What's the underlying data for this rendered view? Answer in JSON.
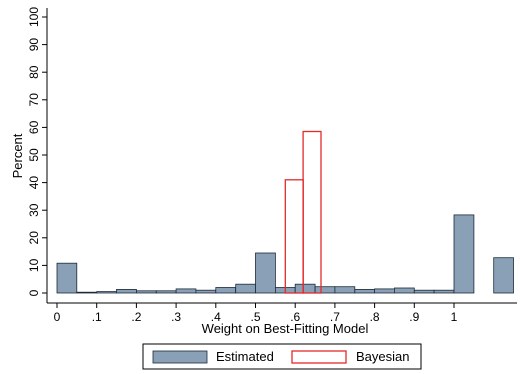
{
  "chart_data": {
    "type": "bar",
    "xlabel": "Weight on Best-Fitting Model",
    "ylabel": "Percent",
    "xlim": [
      0,
      1.15
    ],
    "ylim": [
      0,
      100
    ],
    "xticks": [
      0,
      0.1,
      0.2,
      0.3,
      0.4,
      0.5,
      0.6,
      0.7,
      0.8,
      0.9,
      1
    ],
    "xtick_labels": [
      "0",
      ".1",
      ".2",
      ".3",
      ".4",
      ".5",
      ".6",
      ".7",
      ".8",
      ".9",
      "1"
    ],
    "yticks": [
      0,
      10,
      20,
      30,
      40,
      50,
      60,
      70,
      80,
      90,
      100
    ],
    "ytick_labels": [
      "0",
      "10",
      "20",
      "30",
      "40",
      "50",
      "60",
      "70",
      "80",
      "90",
      "100"
    ],
    "grid": false,
    "legend_position": "bottom",
    "series": [
      {
        "name": "Estimated",
        "style": "filled",
        "color": "#8aa0b7",
        "edge_color": "#1c2a38",
        "bins": [
          {
            "x0": 0.0,
            "x1": 0.05,
            "value": 10.8
          },
          {
            "x0": 0.05,
            "x1": 0.1,
            "value": 0.3
          },
          {
            "x0": 0.1,
            "x1": 0.15,
            "value": 0.5
          },
          {
            "x0": 0.15,
            "x1": 0.2,
            "value": 1.3
          },
          {
            "x0": 0.2,
            "x1": 0.25,
            "value": 0.8
          },
          {
            "x0": 0.25,
            "x1": 0.3,
            "value": 0.8
          },
          {
            "x0": 0.3,
            "x1": 0.35,
            "value": 1.5
          },
          {
            "x0": 0.35,
            "x1": 0.4,
            "value": 1.0
          },
          {
            "x0": 0.4,
            "x1": 0.45,
            "value": 2.0
          },
          {
            "x0": 0.45,
            "x1": 0.5,
            "value": 3.2
          },
          {
            "x0": 0.5,
            "x1": 0.55,
            "value": 14.5
          },
          {
            "x0": 0.55,
            "x1": 0.6,
            "value": 2.0
          },
          {
            "x0": 0.6,
            "x1": 0.65,
            "value": 3.2
          },
          {
            "x0": 0.65,
            "x1": 0.7,
            "value": 2.3
          },
          {
            "x0": 0.7,
            "x1": 0.75,
            "value": 2.3
          },
          {
            "x0": 0.75,
            "x1": 0.8,
            "value": 1.3
          },
          {
            "x0": 0.8,
            "x1": 0.85,
            "value": 1.5
          },
          {
            "x0": 0.85,
            "x1": 0.9,
            "value": 1.8
          },
          {
            "x0": 0.9,
            "x1": 0.95,
            "value": 1.0
          },
          {
            "x0": 0.95,
            "x1": 1.0,
            "value": 1.0
          },
          {
            "x0": 1.0,
            "x1": 1.05,
            "value": 28.3
          },
          {
            "x0": 1.1,
            "x1": 1.15,
            "value": 12.8
          }
        ]
      },
      {
        "name": "Bayesian",
        "style": "outline",
        "color": "#e32b2b",
        "bins": [
          {
            "x0": 0.575,
            "x1": 0.62,
            "value": 41.0
          },
          {
            "x0": 0.62,
            "x1": 0.665,
            "value": 58.5
          }
        ]
      }
    ]
  }
}
